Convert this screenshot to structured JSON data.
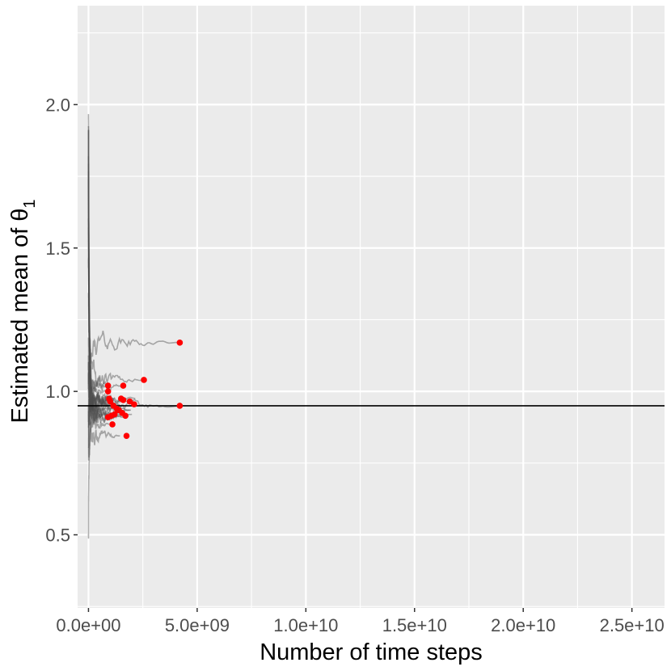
{
  "chart_data": {
    "type": "line",
    "title": "",
    "xlabel": "Number of time steps",
    "ylabel": "Estimated mean of θ",
    "ylabel_subscript": "1",
    "xlim": [
      -500000000.0,
      26500000000.0
    ],
    "ylim": [
      0.245,
      2.345
    ],
    "x_ticks": [
      0,
      5000000000.0,
      10000000000.0,
      15000000000.0,
      20000000000.0,
      25000000000.0
    ],
    "x_tick_labels": [
      "0.0e+00",
      "5.0e+09",
      "1.0e+10",
      "1.5e+10",
      "2.0e+10",
      "2.5e+10"
    ],
    "y_ticks": [
      0.5,
      1.0,
      1.5,
      2.0
    ],
    "y_tick_labels": [
      "0.5",
      "1.0",
      "1.5",
      "2.0"
    ],
    "grid": true,
    "reference_line": {
      "y": 0.95,
      "color": "#000000"
    },
    "trace_color": "#4d4d4d",
    "endpoint_color": "#ff0000",
    "trace_ends_x": [
      4200000000.0,
      4200000000.0,
      2550000000.0,
      1650000000.0,
      900000000.0,
      800000000.0,
      1200000000.0,
      1800000000.0,
      2150000000.0,
      1000000000.0,
      1500000000.0,
      1350000000.0,
      850000000.0,
      1950000000.0,
      1100000000.0,
      1750000000.0,
      2000000000.0,
      1250000000.0,
      1600000000.0,
      950000000.0,
      1450000000.0,
      1900000000.0,
      1050000000.0
    ],
    "endpoints": [
      {
        "x": 4200000000.0,
        "y": 1.17
      },
      {
        "x": 4200000000.0,
        "y": 0.95
      },
      {
        "x": 2550000000.0,
        "y": 1.04
      },
      {
        "x": 1600000000.0,
        "y": 1.02
      },
      {
        "x": 900000000.0,
        "y": 1.02
      },
      {
        "x": 900000000.0,
        "y": 1.0
      },
      {
        "x": 950000000.0,
        "y": 0.975
      },
      {
        "x": 1000000000.0,
        "y": 0.965
      },
      {
        "x": 1500000000.0,
        "y": 0.975
      },
      {
        "x": 1600000000.0,
        "y": 0.97
      },
      {
        "x": 1900000000.0,
        "y": 0.965
      },
      {
        "x": 2100000000.0,
        "y": 0.955
      },
      {
        "x": 1300000000.0,
        "y": 0.94
      },
      {
        "x": 1400000000.0,
        "y": 0.935
      },
      {
        "x": 1550000000.0,
        "y": 0.925
      },
      {
        "x": 1700000000.0,
        "y": 0.915
      },
      {
        "x": 1200000000.0,
        "y": 0.92
      },
      {
        "x": 1050000000.0,
        "y": 0.915
      },
      {
        "x": 900000000.0,
        "y": 0.91
      },
      {
        "x": 1100000000.0,
        "y": 0.885
      },
      {
        "x": 1750000000.0,
        "y": 0.845
      },
      {
        "x": 1350000000.0,
        "y": 0.935
      },
      {
        "x": 1150000000.0,
        "y": 0.95
      }
    ]
  }
}
